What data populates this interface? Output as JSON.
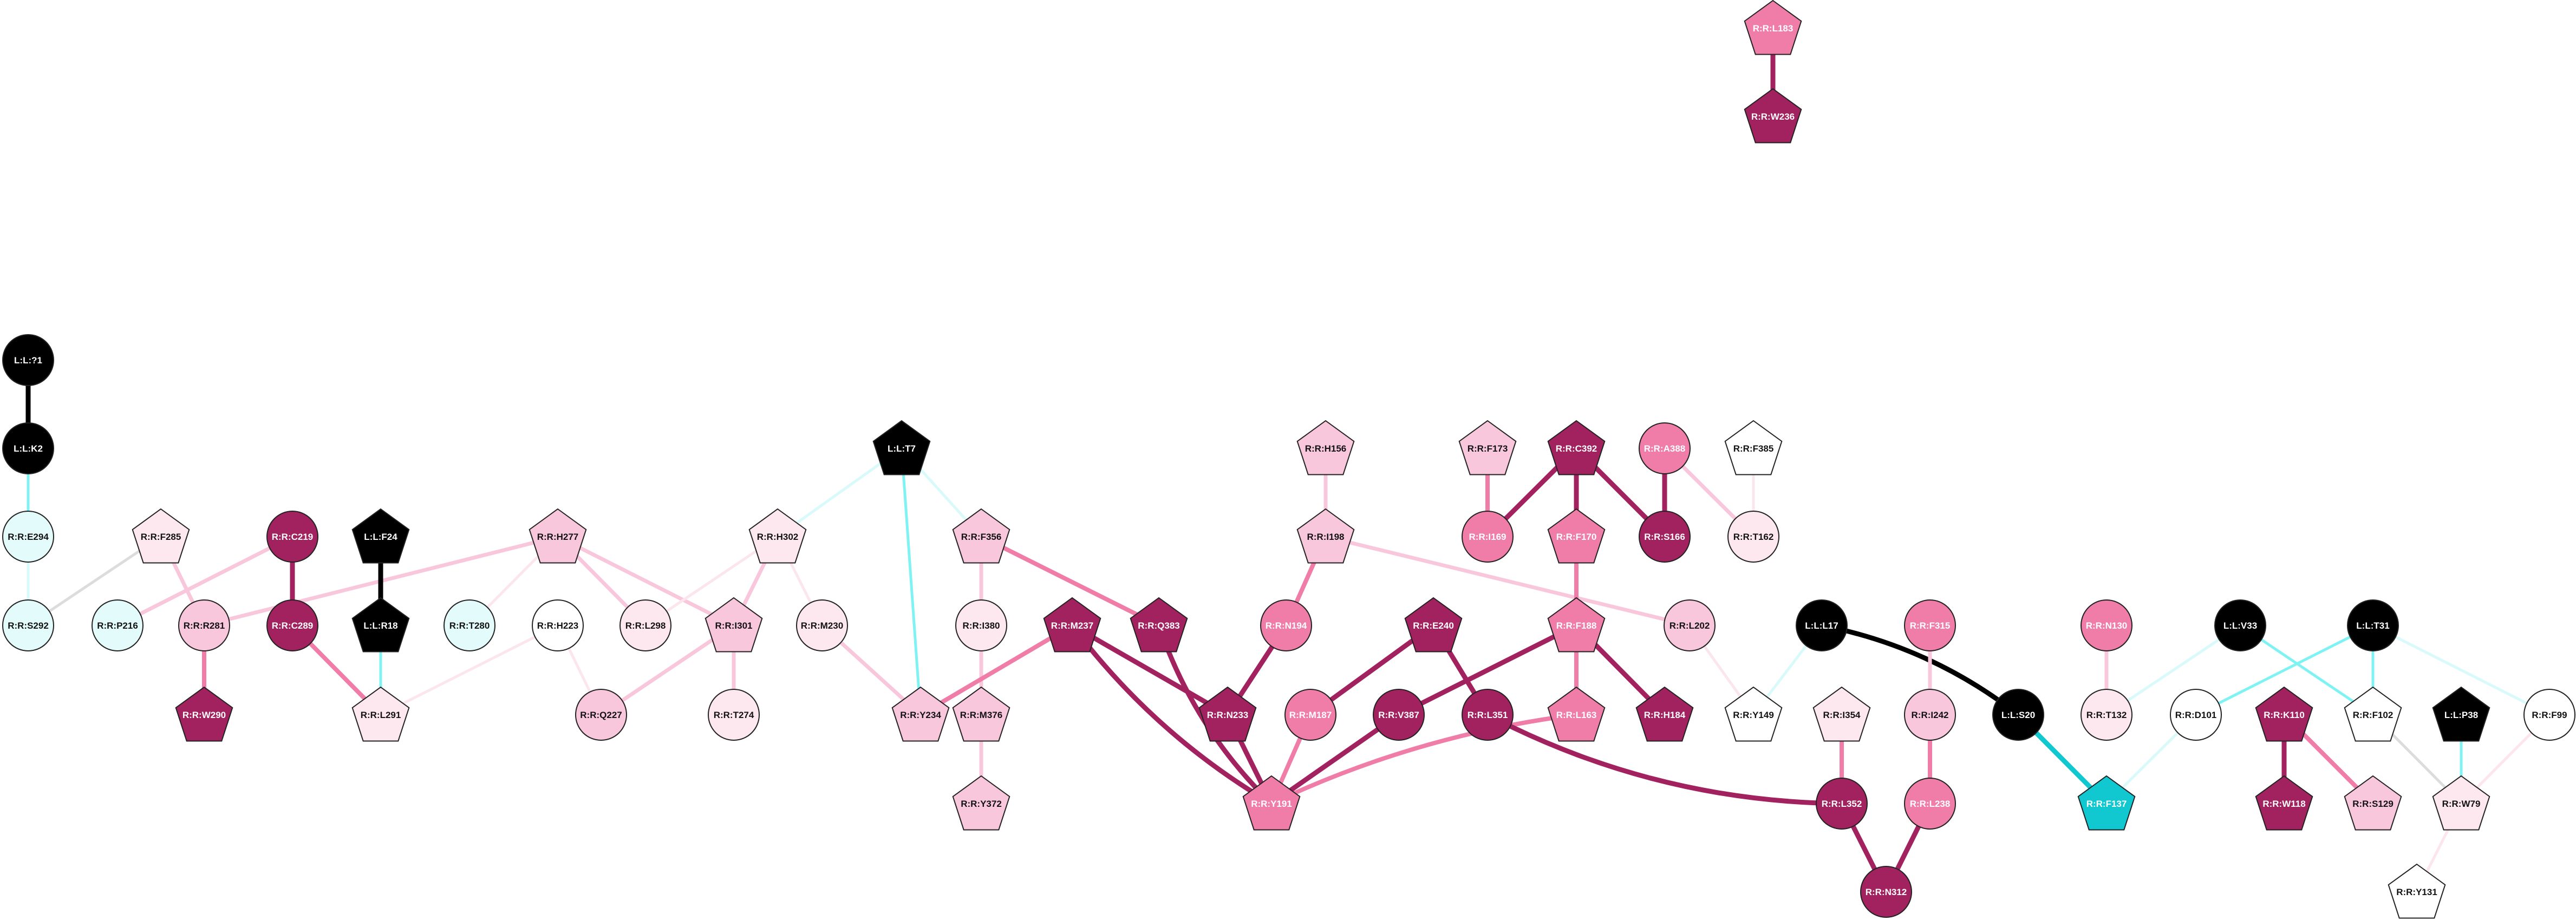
{
  "colors": {
    "black": "#000000",
    "maroon": "#a2225f",
    "pink": "#ef7da8",
    "light_pink": "#f9c7dc",
    "pale_pink": "#fde8f0",
    "white": "#ffffff",
    "cyan_fill": "#e3fbfb",
    "cyan": "#12c8d0",
    "edge_cyan": "#7ff3f3",
    "edge_pale_cyan": "#d9fafa",
    "edge_grey": "#dcdcdc",
    "edge_pale_pink": "#fbe6ee"
  },
  "nodes": [
    {
      "id": "L:L:?1",
      "shape": "circle",
      "fill": "black"
    },
    {
      "id": "L:L:K2",
      "shape": "circle",
      "fill": "black"
    },
    {
      "id": "R:R:E294",
      "shape": "circle",
      "fill": "cyan_fill"
    },
    {
      "id": "R:R:S292",
      "shape": "circle",
      "fill": "cyan_fill"
    },
    {
      "id": "R:R:F285",
      "shape": "pentagon",
      "fill": "pale_pink"
    },
    {
      "id": "R:R:P216",
      "shape": "circle",
      "fill": "cyan_fill"
    },
    {
      "id": "R:R:R281",
      "shape": "circle",
      "fill": "light_pink"
    },
    {
      "id": "R:R:W290",
      "shape": "pentagon",
      "fill": "maroon"
    },
    {
      "id": "R:R:C219",
      "shape": "circle",
      "fill": "maroon"
    },
    {
      "id": "R:R:C289",
      "shape": "circle",
      "fill": "maroon"
    },
    {
      "id": "L:L:F24",
      "shape": "pentagon",
      "fill": "black"
    },
    {
      "id": "L:L:R18",
      "shape": "pentagon",
      "fill": "black"
    },
    {
      "id": "R:R:L291",
      "shape": "pentagon",
      "fill": "pale_pink"
    },
    {
      "id": "R:R:H277",
      "shape": "pentagon",
      "fill": "light_pink"
    },
    {
      "id": "R:R:T280",
      "shape": "circle",
      "fill": "cyan_fill"
    },
    {
      "id": "R:R:H223",
      "shape": "circle",
      "fill": "white"
    },
    {
      "id": "R:R:Q227",
      "shape": "circle",
      "fill": "light_pink"
    },
    {
      "id": "R:R:L298",
      "shape": "circle",
      "fill": "pale_pink"
    },
    {
      "id": "R:R:I301",
      "shape": "pentagon",
      "fill": "light_pink"
    },
    {
      "id": "R:R:T274",
      "shape": "circle",
      "fill": "pale_pink"
    },
    {
      "id": "R:R:H302",
      "shape": "pentagon",
      "fill": "pale_pink"
    },
    {
      "id": "R:R:M230",
      "shape": "circle",
      "fill": "pale_pink"
    },
    {
      "id": "L:L:T7",
      "shape": "pentagon",
      "fill": "black"
    },
    {
      "id": "R:R:F356",
      "shape": "pentagon",
      "fill": "light_pink"
    },
    {
      "id": "R:R:I380",
      "shape": "circle",
      "fill": "pale_pink"
    },
    {
      "id": "R:R:Y234",
      "shape": "pentagon",
      "fill": "light_pink"
    },
    {
      "id": "R:R:M376",
      "shape": "pentagon",
      "fill": "light_pink"
    },
    {
      "id": "R:R:Y372",
      "shape": "pentagon",
      "fill": "light_pink"
    },
    {
      "id": "R:R:M237",
      "shape": "pentagon",
      "fill": "maroon"
    },
    {
      "id": "R:R:Q383",
      "shape": "pentagon",
      "fill": "maroon"
    },
    {
      "id": "R:R:N233",
      "shape": "pentagon",
      "fill": "maroon"
    },
    {
      "id": "R:R:Y191",
      "shape": "pentagon",
      "fill": "pink"
    },
    {
      "id": "R:R:H156",
      "shape": "pentagon",
      "fill": "light_pink"
    },
    {
      "id": "R:R:I198",
      "shape": "pentagon",
      "fill": "light_pink"
    },
    {
      "id": "R:R:N194",
      "shape": "circle",
      "fill": "pink"
    },
    {
      "id": "R:R:M187",
      "shape": "circle",
      "fill": "pink"
    },
    {
      "id": "R:R:E240",
      "shape": "pentagon",
      "fill": "maroon"
    },
    {
      "id": "R:R:V387",
      "shape": "circle",
      "fill": "maroon"
    },
    {
      "id": "R:R:L351",
      "shape": "circle",
      "fill": "maroon"
    },
    {
      "id": "R:R:F173",
      "shape": "pentagon",
      "fill": "light_pink"
    },
    {
      "id": "R:R:I169",
      "shape": "circle",
      "fill": "pink"
    },
    {
      "id": "R:R:C392",
      "shape": "pentagon",
      "fill": "maroon"
    },
    {
      "id": "R:R:F170",
      "shape": "pentagon",
      "fill": "pink"
    },
    {
      "id": "R:R:S166",
      "shape": "circle",
      "fill": "maroon"
    },
    {
      "id": "R:R:A388",
      "shape": "circle",
      "fill": "pink"
    },
    {
      "id": "R:R:F385",
      "shape": "pentagon",
      "fill": "white"
    },
    {
      "id": "R:R:T162",
      "shape": "circle",
      "fill": "pale_pink"
    },
    {
      "id": "R:R:F188",
      "shape": "pentagon",
      "fill": "pink"
    },
    {
      "id": "R:R:L163",
      "shape": "pentagon",
      "fill": "pink"
    },
    {
      "id": "R:R:H184",
      "shape": "pentagon",
      "fill": "maroon"
    },
    {
      "id": "R:R:L202",
      "shape": "circle",
      "fill": "light_pink"
    },
    {
      "id": "R:R:L183",
      "shape": "pentagon",
      "fill": "pink"
    },
    {
      "id": "R:R:W236",
      "shape": "pentagon",
      "fill": "maroon"
    },
    {
      "id": "L:L:L17",
      "shape": "circle",
      "fill": "black"
    },
    {
      "id": "R:R:Y149",
      "shape": "pentagon",
      "fill": "white"
    },
    {
      "id": "R:R:I354",
      "shape": "pentagon",
      "fill": "pale_pink"
    },
    {
      "id": "R:R:L352",
      "shape": "circle",
      "fill": "maroon"
    },
    {
      "id": "R:R:N312",
      "shape": "circle",
      "fill": "maroon"
    },
    {
      "id": "R:R:F315",
      "shape": "circle",
      "fill": "pink"
    },
    {
      "id": "R:R:I242",
      "shape": "circle",
      "fill": "light_pink"
    },
    {
      "id": "R:R:L238",
      "shape": "circle",
      "fill": "pink"
    },
    {
      "id": "L:L:S20",
      "shape": "circle",
      "fill": "black"
    },
    {
      "id": "R:R:F137",
      "shape": "pentagon",
      "fill": "cyan"
    },
    {
      "id": "R:R:N130",
      "shape": "circle",
      "fill": "pink"
    },
    {
      "id": "R:R:T132",
      "shape": "circle",
      "fill": "pale_pink"
    },
    {
      "id": "L:L:V33",
      "shape": "circle",
      "fill": "black"
    },
    {
      "id": "R:R:D101",
      "shape": "circle",
      "fill": "white"
    },
    {
      "id": "L:L:T31",
      "shape": "circle",
      "fill": "black"
    },
    {
      "id": "R:R:F102",
      "shape": "pentagon",
      "fill": "white"
    },
    {
      "id": "R:R:K110",
      "shape": "pentagon",
      "fill": "maroon"
    },
    {
      "id": "R:R:W118",
      "shape": "pentagon",
      "fill": "maroon"
    },
    {
      "id": "R:R:S129",
      "shape": "pentagon",
      "fill": "light_pink"
    },
    {
      "id": "L:L:P38",
      "shape": "pentagon",
      "fill": "black"
    },
    {
      "id": "R:R:W79",
      "shape": "pentagon",
      "fill": "pale_pink"
    },
    {
      "id": "R:R:F99",
      "shape": "circle",
      "fill": "white"
    },
    {
      "id": "R:R:Y131",
      "shape": "pentagon",
      "fill": "white"
    }
  ],
  "edges": [
    {
      "source": "L:L:?1",
      "target": "L:L:K2",
      "color": "black"
    },
    {
      "source": "L:L:K2",
      "target": "R:R:E294",
      "color": "edge_cyan"
    },
    {
      "source": "R:R:E294",
      "target": "R:R:S292",
      "color": "edge_pale_cyan"
    },
    {
      "source": "R:R:F285",
      "target": "R:R:S292",
      "color": "edge_grey"
    },
    {
      "source": "R:R:F285",
      "target": "R:R:R281",
      "color": "light_pink"
    },
    {
      "source": "R:R:C219",
      "target": "R:R:P216",
      "color": "light_pink"
    },
    {
      "source": "R:R:R281",
      "target": "R:R:W290",
      "color": "pink"
    },
    {
      "source": "R:R:R281",
      "target": "R:R:H277",
      "color": "light_pink"
    },
    {
      "source": "R:R:C219",
      "target": "R:R:C289",
      "color": "maroon"
    },
    {
      "source": "R:R:C289",
      "target": "R:R:L291",
      "color": "pink"
    },
    {
      "source": "L:L:F24",
      "target": "L:L:R18",
      "color": "black"
    },
    {
      "source": "L:L:R18",
      "target": "R:R:L291",
      "color": "edge_cyan"
    },
    {
      "source": "R:R:H277",
      "target": "R:R:T280",
      "color": "edge_pale_pink"
    },
    {
      "source": "R:R:H277",
      "target": "R:R:L298",
      "color": "light_pink"
    },
    {
      "source": "R:R:H277",
      "target": "R:R:I301",
      "color": "light_pink"
    },
    {
      "source": "R:R:H223",
      "target": "R:R:L291",
      "color": "edge_pale_pink"
    },
    {
      "source": "R:R:H223",
      "target": "R:R:Q227",
      "color": "edge_pale_pink"
    },
    {
      "source": "R:R:I301",
      "target": "R:R:Q227",
      "color": "light_pink"
    },
    {
      "source": "R:R:I301",
      "target": "R:R:T274",
      "color": "light_pink"
    },
    {
      "source": "R:R:H302",
      "target": "R:R:I301",
      "color": "light_pink"
    },
    {
      "source": "R:R:H302",
      "target": "R:R:L298",
      "color": "edge_pale_pink"
    },
    {
      "source": "R:R:H302",
      "target": "R:R:M230",
      "color": "edge_pale_pink"
    },
    {
      "source": "L:L:T7",
      "target": "R:R:H302",
      "color": "edge_pale_cyan"
    },
    {
      "source": "L:L:T7",
      "target": "R:R:F356",
      "color": "edge_pale_cyan"
    },
    {
      "source": "L:L:T7",
      "target": "R:R:Y234",
      "color": "edge_cyan"
    },
    {
      "source": "R:R:M230",
      "target": "R:R:Y234",
      "color": "light_pink"
    },
    {
      "source": "R:R:F356",
      "target": "R:R:I380",
      "color": "light_pink"
    },
    {
      "source": "R:R:F356",
      "target": "R:R:Q383",
      "color": "pink"
    },
    {
      "source": "R:R:I380",
      "target": "R:R:M376",
      "color": "light_pink"
    },
    {
      "source": "R:R:M376",
      "target": "R:R:Y372",
      "color": "light_pink"
    },
    {
      "source": "R:R:M237",
      "target": "R:R:Y234",
      "color": "pink"
    },
    {
      "source": "R:R:M237",
      "target": "R:R:N233",
      "color": "maroon"
    },
    {
      "source": "R:R:M237",
      "target": "R:R:Y191",
      "color": "maroon"
    },
    {
      "source": "R:R:Q383",
      "target": "R:R:Y191",
      "color": "maroon"
    },
    {
      "source": "R:R:N194",
      "target": "R:R:N233",
      "color": "maroon"
    },
    {
      "source": "R:R:N233",
      "target": "R:R:Y191",
      "color": "maroon"
    },
    {
      "source": "R:R:H156",
      "target": "R:R:I198",
      "color": "light_pink"
    },
    {
      "source": "R:R:I198",
      "target": "R:R:N194",
      "color": "pink"
    },
    {
      "source": "R:R:I198",
      "target": "R:R:L202",
      "color": "light_pink"
    },
    {
      "source": "R:R:M187",
      "target": "R:R:Y191",
      "color": "pink"
    },
    {
      "source": "R:R:E240",
      "target": "R:R:M187",
      "color": "maroon"
    },
    {
      "source": "R:R:E240",
      "target": "R:R:L351",
      "color": "maroon"
    },
    {
      "source": "R:R:V387",
      "target": "R:R:Y191",
      "color": "maroon"
    },
    {
      "source": "R:R:F188",
      "target": "R:R:V387",
      "color": "maroon"
    },
    {
      "source": "R:R:L163",
      "target": "R:R:Y191",
      "color": "pink"
    },
    {
      "source": "R:R:L351",
      "target": "R:R:L352",
      "color": "maroon"
    },
    {
      "source": "R:R:C392",
      "target": "R:R:I169",
      "color": "maroon"
    },
    {
      "source": "R:R:C392",
      "target": "R:R:F170",
      "color": "maroon"
    },
    {
      "source": "R:R:C392",
      "target": "R:R:S166",
      "color": "maroon"
    },
    {
      "source": "R:R:F173",
      "target": "R:R:I169",
      "color": "pink"
    },
    {
      "source": "R:R:A388",
      "target": "R:R:S166",
      "color": "maroon"
    },
    {
      "source": "R:R:A388",
      "target": "R:R:T162",
      "color": "light_pink"
    },
    {
      "source": "R:R:F385",
      "target": "R:R:T162",
      "color": "edge_pale_pink"
    },
    {
      "source": "R:R:F170",
      "target": "R:R:F188",
      "color": "pink"
    },
    {
      "source": "R:R:F188",
      "target": "R:R:L163",
      "color": "pink"
    },
    {
      "source": "R:R:F188",
      "target": "R:R:H184",
      "color": "maroon"
    },
    {
      "source": "R:R:L202",
      "target": "R:R:Y149",
      "color": "edge_pale_pink"
    },
    {
      "source": "R:R:L183",
      "target": "R:R:W236",
      "color": "maroon"
    },
    {
      "source": "L:L:L17",
      "target": "R:R:Y149",
      "color": "edge_pale_cyan"
    },
    {
      "source": "L:L:L17",
      "target": "L:L:S20",
      "color": "black"
    },
    {
      "source": "R:R:I354",
      "target": "R:R:L352",
      "color": "pink"
    },
    {
      "source": "R:R:L352",
      "target": "R:R:N312",
      "color": "maroon"
    },
    {
      "source": "R:R:F315",
      "target": "R:R:I242",
      "color": "light_pink"
    },
    {
      "source": "R:R:I242",
      "target": "R:R:L238",
      "color": "pink"
    },
    {
      "source": "R:R:L238",
      "target": "R:R:N312",
      "color": "maroon"
    },
    {
      "source": "L:L:S20",
      "target": "R:R:F137",
      "color": "cyan"
    },
    {
      "source": "R:R:N130",
      "target": "R:R:T132",
      "color": "light_pink"
    },
    {
      "source": "L:L:V33",
      "target": "R:R:T132",
      "color": "edge_pale_cyan"
    },
    {
      "source": "L:L:V33",
      "target": "R:R:F102",
      "color": "edge_cyan"
    },
    {
      "source": "L:L:T31",
      "target": "R:R:D101",
      "color": "edge_cyan"
    },
    {
      "source": "L:L:T31",
      "target": "R:R:F102",
      "color": "edge_cyan"
    },
    {
      "source": "L:L:T31",
      "target": "R:R:F99",
      "color": "edge_pale_cyan"
    },
    {
      "source": "R:R:D101",
      "target": "R:R:F137",
      "color": "edge_pale_cyan"
    },
    {
      "source": "R:R:K110",
      "target": "R:R:W118",
      "color": "maroon"
    },
    {
      "source": "R:R:K110",
      "target": "R:R:S129",
      "color": "pink"
    },
    {
      "source": "R:R:F102",
      "target": "R:R:W79",
      "color": "edge_grey"
    },
    {
      "source": "L:L:P38",
      "target": "R:R:W79",
      "color": "edge_cyan"
    },
    {
      "source": "R:R:F99",
      "target": "R:R:W79",
      "color": "edge_pale_pink"
    },
    {
      "source": "R:R:W79",
      "target": "R:R:Y131",
      "color": "edge_pale_pink"
    }
  ]
}
